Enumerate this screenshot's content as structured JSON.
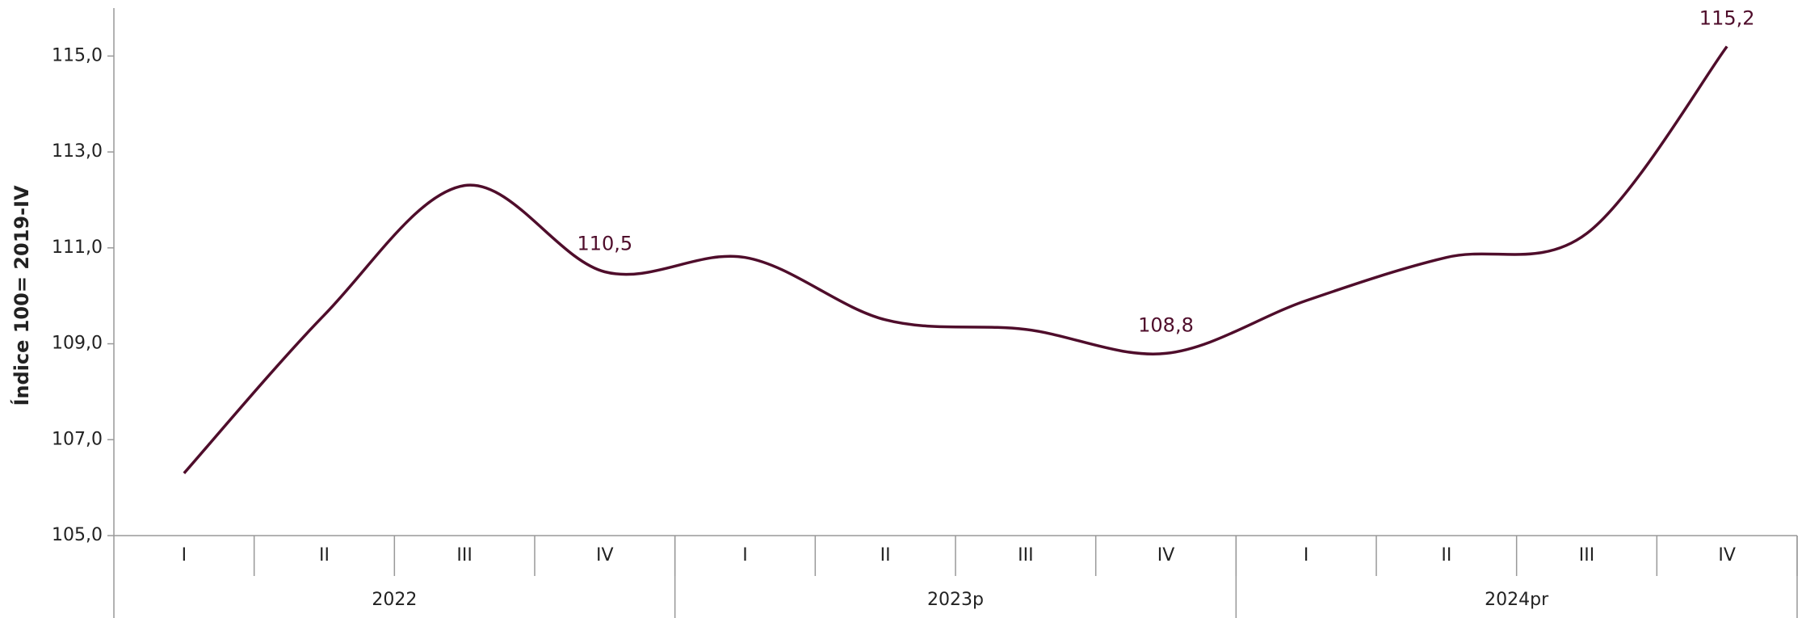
{
  "chart_data": {
    "type": "line",
    "y_label": "Índice 100= 2019-IV",
    "categories": [
      "I",
      "II",
      "III",
      "IV",
      "I",
      "II",
      "III",
      "IV",
      "I",
      "II",
      "III",
      "IV"
    ],
    "groups": [
      "2022",
      "2023p",
      "2024pr"
    ],
    "series": [
      {
        "name": "Índice",
        "color": "#4f0d2b",
        "values": [
          106.3,
          109.6,
          112.3,
          110.5,
          110.8,
          109.5,
          109.3,
          108.8,
          109.9,
          110.8,
          111.3,
          115.2
        ],
        "value_labels": [
          null,
          null,
          null,
          "110,5",
          null,
          null,
          null,
          "108,8",
          null,
          null,
          null,
          "115,2"
        ]
      }
    ],
    "ylim": [
      105,
      116
    ],
    "yticks": [
      {
        "value": 105,
        "label": "105,0"
      },
      {
        "value": 107,
        "label": "107,0"
      },
      {
        "value": 109,
        "label": "109,0"
      },
      {
        "value": 111,
        "label": "111,0"
      },
      {
        "value": 113,
        "label": "113,0"
      },
      {
        "value": 115,
        "label": "115,0"
      }
    ]
  }
}
